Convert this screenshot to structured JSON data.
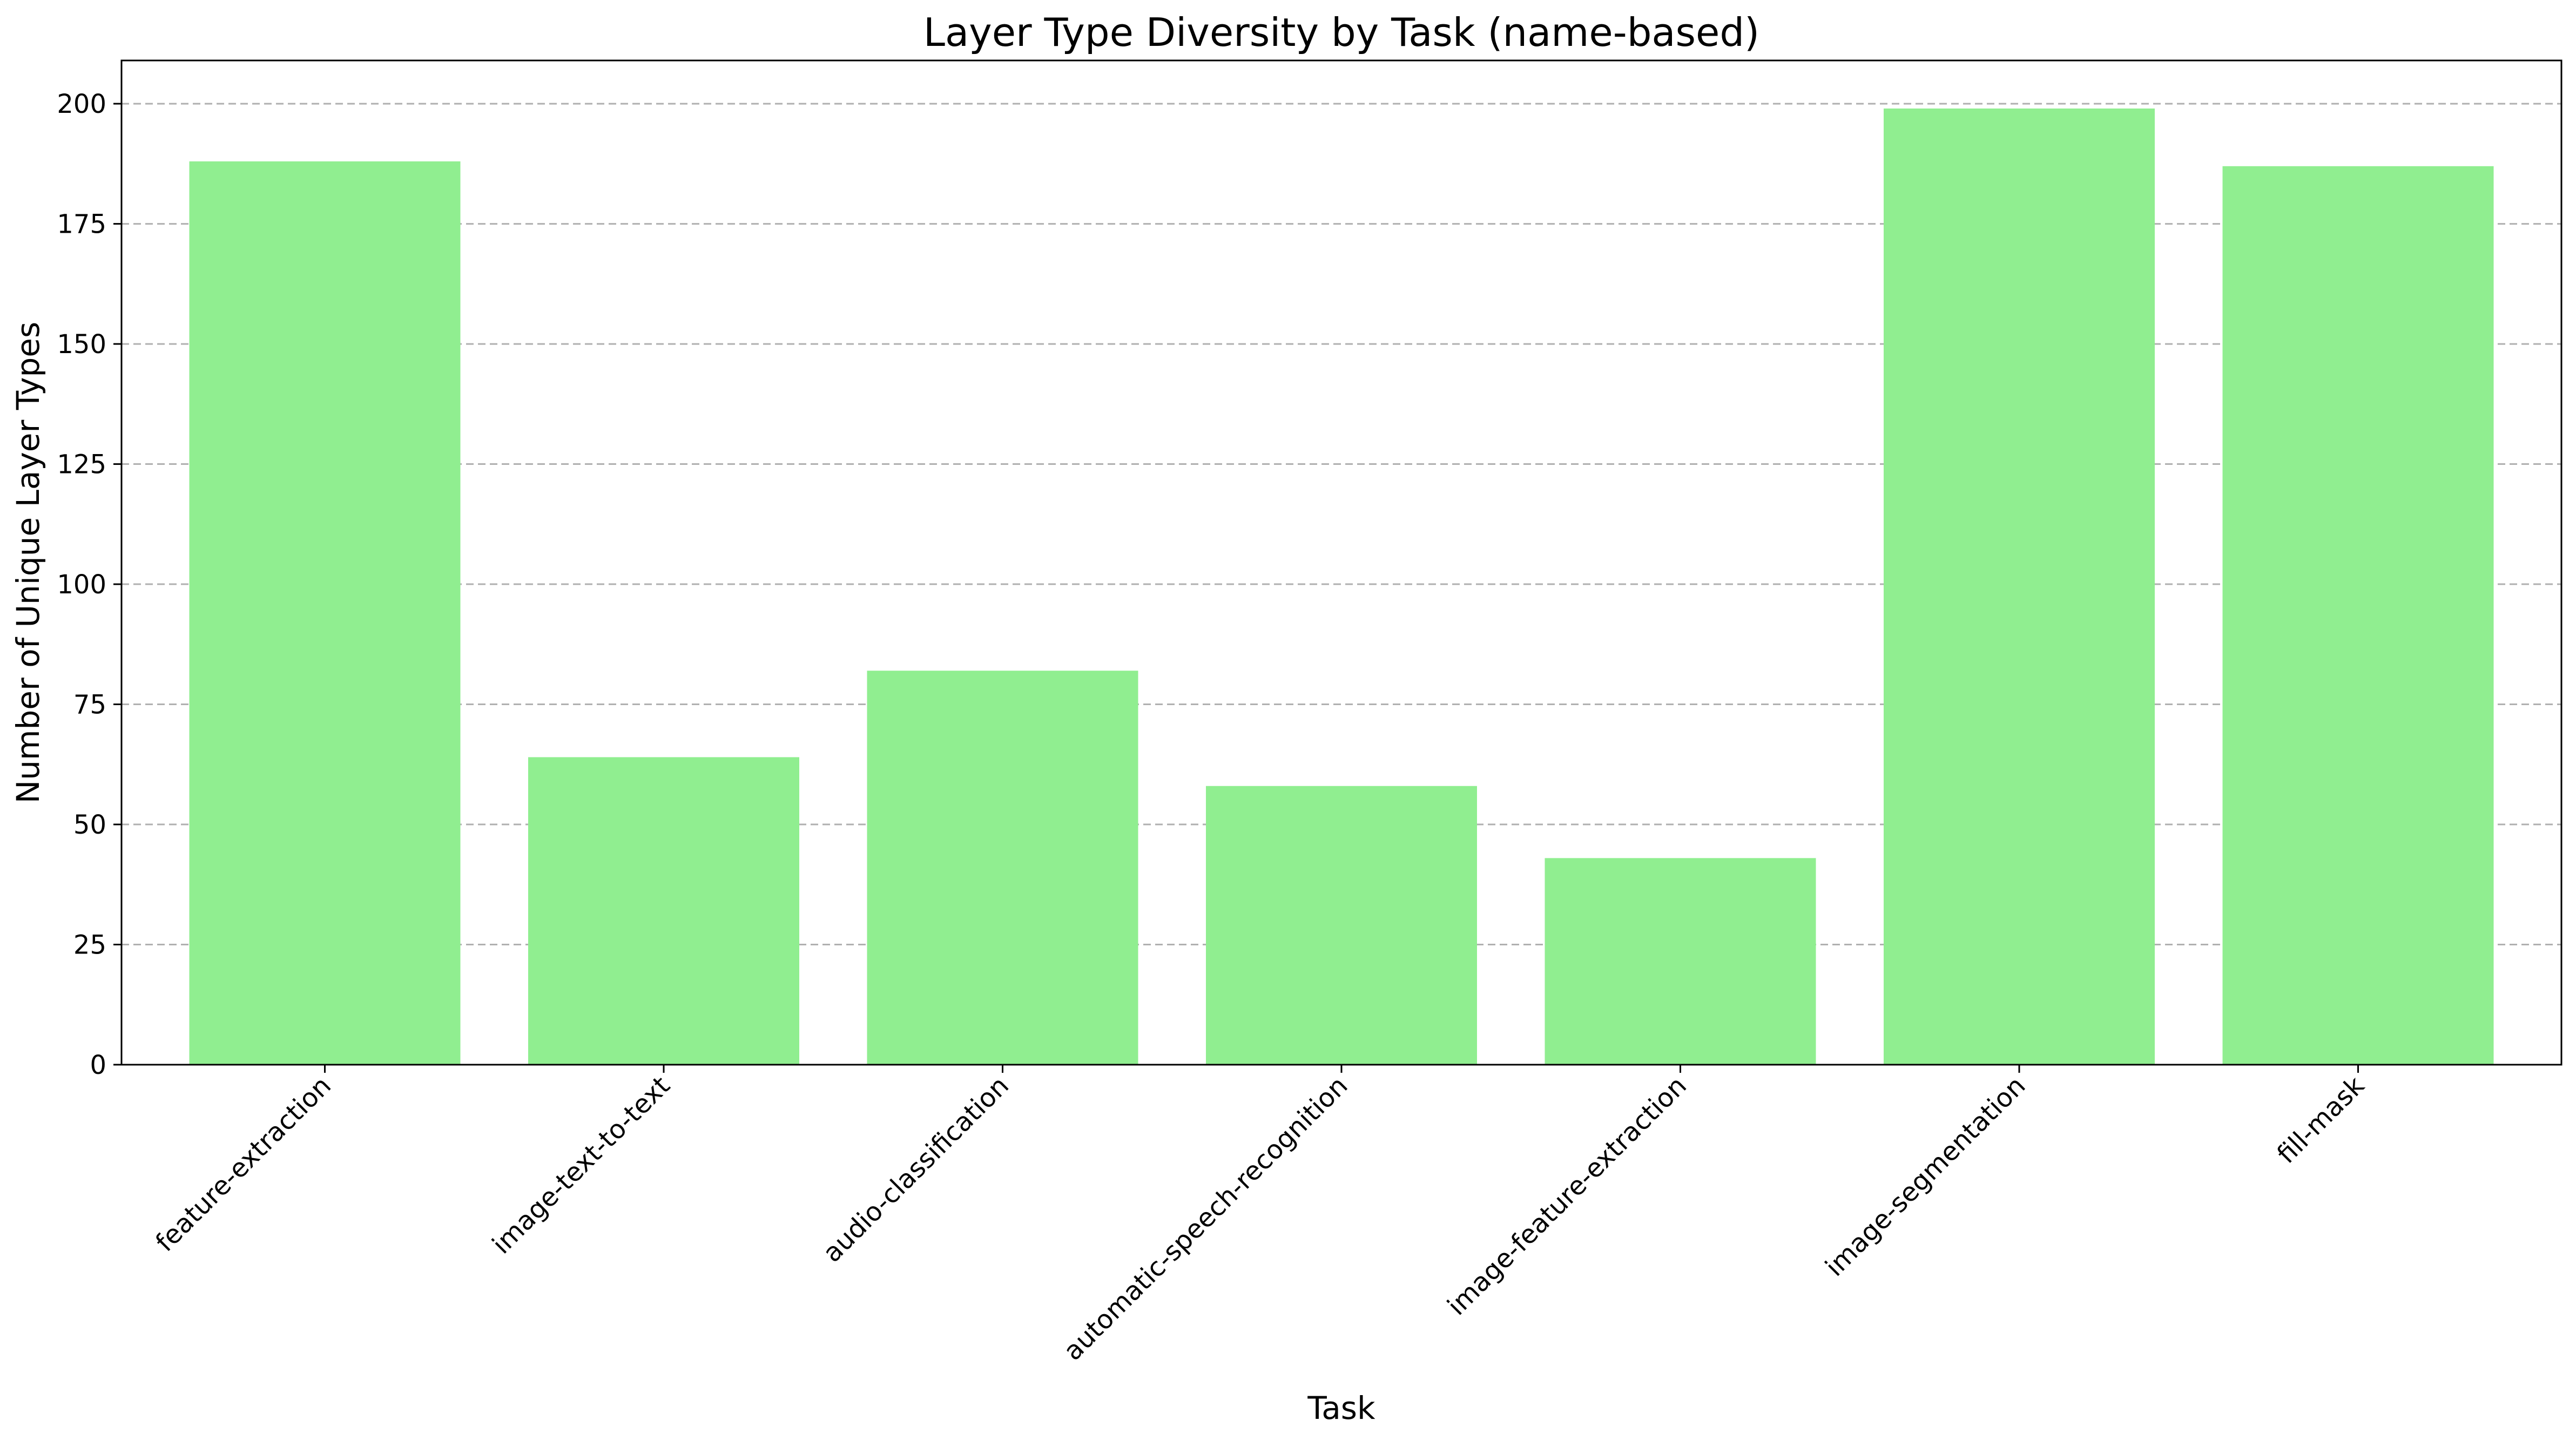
{
  "chart_data": {
    "type": "bar",
    "title": "Layer Type Diversity by Task (name-based)",
    "xlabel": "Task",
    "ylabel": "Number of Unique Layer Types",
    "categories": [
      "feature-extraction",
      "image-text-to-text",
      "audio-classification",
      "automatic-speech-recognition",
      "image-feature-extraction",
      "image-segmentation",
      "fill-mask"
    ],
    "values": [
      188,
      64,
      82,
      58,
      43,
      199,
      187
    ],
    "ylim": [
      0,
      209
    ],
    "yticks": [
      0,
      25,
      50,
      75,
      100,
      125,
      150,
      175,
      200
    ],
    "grid": "y-dashed",
    "bar_color": "#90ee90"
  }
}
